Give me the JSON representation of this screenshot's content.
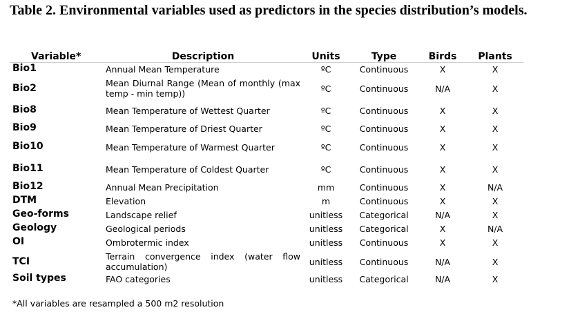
{
  "title": "Table 2. Environmental variables used as predictors in the species distribution’s models.",
  "headers": {
    "variable": "Variable*",
    "description": "Description",
    "units": "Units",
    "type": "Type",
    "birds": "Birds",
    "plants": "Plants"
  },
  "rows": [
    {
      "variable": "Bio1",
      "description": "Annual Mean Temperature",
      "units": "ºC",
      "type": "Continuous",
      "birds": "X",
      "plants": "X"
    },
    {
      "variable": "Bio2",
      "description": "Mean Diurnal Range (Mean of monthly (max temp - min temp))",
      "units": "ºC",
      "type": "Continuous",
      "birds": "N/A",
      "plants": "X"
    },
    {
      "variable": "Bio8",
      "description": "Mean Temperature of Wettest Quarter",
      "units": "ºC",
      "type": "Continuous",
      "birds": "X",
      "plants": "X"
    },
    {
      "variable": "Bio9",
      "description": "Mean Temperature of Driest Quarter",
      "units": "ºC",
      "type": "Continuous",
      "birds": "X",
      "plants": "X"
    },
    {
      "variable": "Bio10",
      "description": "Mean Temperature of Warmest Quarter",
      "units": "ºC",
      "type": "Continuous",
      "birds": "X",
      "plants": "X"
    },
    {
      "variable": "Bio11",
      "description": "Mean Temperature of Coldest Quarter",
      "units": "ºC",
      "type": "Continuous",
      "birds": "X",
      "plants": "X"
    },
    {
      "variable": "Bio12",
      "description": "Annual Mean Precipitation",
      "units": "mm",
      "type": "Continuous",
      "birds": "X",
      "plants": "N/A"
    },
    {
      "variable": "DTM",
      "description": "Elevation",
      "units": "m",
      "type": "Continuous",
      "birds": "X",
      "plants": "X"
    },
    {
      "variable": "Geo-forms",
      "description": "Landscape relief",
      "units": "unitless",
      "type": "Categorical",
      "birds": "N/A",
      "plants": "X"
    },
    {
      "variable": "Geology",
      "description": "Geological periods",
      "units": "unitless",
      "type": "Categorical",
      "birds": "X",
      "plants": "N/A"
    },
    {
      "variable": "OI",
      "description": "Ombrotermic index",
      "units": "unitless",
      "type": "Continuous",
      "birds": "X",
      "plants": "X"
    },
    {
      "variable": "TCI",
      "description": "Terrain convergence index (water flow accumulation)",
      "units": "unitless",
      "type": "Continuous",
      "birds": "N/A",
      "plants": "X"
    },
    {
      "variable": "Soil types",
      "description": "FAO categories",
      "units": "unitless",
      "type": "Categorical",
      "birds": "N/A",
      "plants": "X"
    }
  ],
  "footnote": "*All variables are resampled a 500 m2 resolution"
}
